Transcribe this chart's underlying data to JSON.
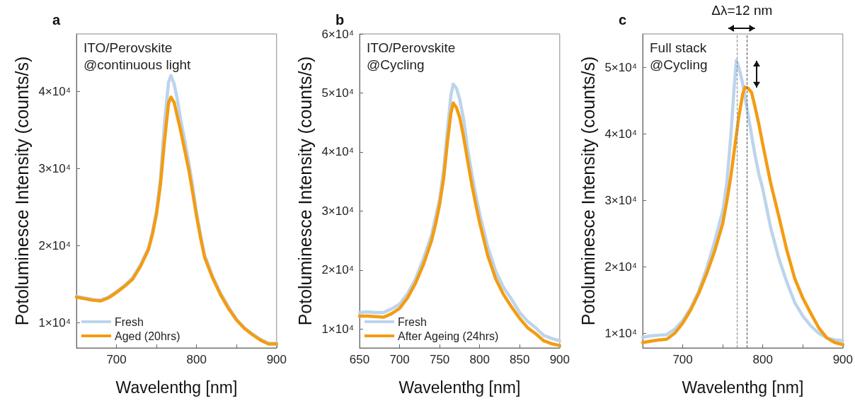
{
  "chart_data": [
    {
      "type": "line",
      "title": "a",
      "annotations": [
        "ITO/Perovskite",
        "@continuous light"
      ],
      "xlabel": "Wavelenthg [nm]",
      "ylabel": "Potoluminesce Intensity (counts/s)",
      "xlim": [
        650,
        900
      ],
      "ylim": [
        6700,
        47500
      ],
      "xticks": [
        {
          "value": 650,
          "label": null
        },
        700,
        {
          "value": 750,
          "label": null
        },
        800,
        {
          "value": 850,
          "label": null
        },
        900
      ],
      "yticks": [
        {
          "value": 10000,
          "label": "1×10⁴"
        },
        {
          "value": 20000,
          "label": "2×10⁴"
        },
        {
          "value": 30000,
          "label": "3×10⁴"
        },
        {
          "value": 40000,
          "label": "4×10⁴"
        }
      ],
      "legend": "bottom left",
      "grid": false,
      "marker": "none",
      "line_style": "solid",
      "series": [
        {
          "name": "Fresh",
          "color": "#bcd4ec",
          "x": [
            650,
            660,
            670,
            680,
            690,
            700,
            710,
            720,
            730,
            740,
            745,
            750,
            755,
            760,
            765,
            768,
            772,
            776,
            780,
            785,
            790,
            795,
            800,
            805,
            810,
            820,
            830,
            840,
            850,
            860,
            870,
            880,
            890,
            900
          ],
          "values": [
            13400,
            13200,
            13000,
            12900,
            13300,
            14000,
            14800,
            15800,
            17500,
            19700,
            21800,
            24500,
            28800,
            36000,
            41200,
            42100,
            41000,
            39000,
            36500,
            33800,
            31000,
            27800,
            24300,
            21400,
            18800,
            16000,
            13800,
            12000,
            10400,
            9300,
            8500,
            7800,
            7300,
            7300
          ]
        },
        {
          "name": "Aged (20hrs)",
          "color": "#f39c12",
          "x": [
            650,
            660,
            670,
            680,
            690,
            700,
            710,
            720,
            730,
            740,
            745,
            750,
            755,
            760,
            765,
            768,
            772,
            776,
            780,
            785,
            790,
            795,
            800,
            805,
            810,
            820,
            830,
            840,
            850,
            860,
            870,
            880,
            890,
            900
          ],
          "values": [
            13300,
            13100,
            12900,
            12800,
            13200,
            13900,
            14700,
            15600,
            17300,
            19500,
            21500,
            24100,
            28000,
            33600,
            38500,
            39300,
            38600,
            36800,
            35000,
            32500,
            30000,
            27000,
            23800,
            21000,
            18500,
            15800,
            13600,
            11800,
            10300,
            9200,
            8400,
            7700,
            7200,
            7200
          ]
        }
      ]
    },
    {
      "type": "line",
      "title": "b",
      "annotations": [
        "ITO/Perovskite",
        "@Cycling"
      ],
      "xlabel": "Wavelenthg [nm]",
      "ylabel": "Potoluminesce Intensity (counts/s)",
      "xlim": [
        650,
        900
      ],
      "ylim": [
        6800,
        60000
      ],
      "xticks": [
        650,
        700,
        750,
        800,
        850,
        900
      ],
      "yticks": [
        {
          "value": 10000,
          "label": "1×10⁴"
        },
        {
          "value": 20000,
          "label": "2×10⁴"
        },
        {
          "value": 30000,
          "label": "3×10⁴"
        },
        {
          "value": 40000,
          "label": "4×10⁴"
        },
        {
          "value": 50000,
          "label": "5×10⁴"
        },
        {
          "value": 60000,
          "label": "6×10⁴"
        }
      ],
      "legend": "bottom left",
      "grid": false,
      "marker": "none",
      "line_style": "solid",
      "series": [
        {
          "name": "Fresh",
          "color": "#bcd4ec",
          "x": [
            650,
            660,
            670,
            680,
            690,
            700,
            710,
            720,
            730,
            740,
            745,
            750,
            755,
            760,
            764,
            767,
            771,
            775,
            780,
            785,
            790,
            795,
            800,
            810,
            820,
            830,
            840,
            850,
            860,
            870,
            880,
            890,
            900
          ],
          "values": [
            12800,
            12900,
            12800,
            12800,
            13400,
            14200,
            16000,
            18500,
            22000,
            26000,
            29000,
            32000,
            37000,
            44000,
            49500,
            51500,
            50800,
            49000,
            45500,
            40500,
            36500,
            32800,
            29500,
            24000,
            19800,
            17000,
            15000,
            12800,
            11300,
            10200,
            8900,
            8400,
            8000
          ]
        },
        {
          "name": "After Ageing (24hrs)",
          "color": "#f39c12",
          "x": [
            650,
            660,
            670,
            680,
            690,
            700,
            710,
            720,
            730,
            740,
            745,
            750,
            755,
            760,
            764,
            767,
            771,
            775,
            780,
            785,
            790,
            795,
            800,
            810,
            820,
            830,
            840,
            850,
            860,
            870,
            880,
            890,
            900
          ],
          "values": [
            12200,
            12200,
            12100,
            12000,
            12600,
            13500,
            15300,
            17800,
            21000,
            25000,
            27800,
            31100,
            35500,
            42000,
            46500,
            48300,
            47500,
            45900,
            42500,
            38500,
            34600,
            31200,
            28000,
            22500,
            18500,
            15800,
            13700,
            11800,
            10200,
            9200,
            8000,
            7500,
            7200
          ]
        }
      ]
    },
    {
      "type": "line",
      "title": "c",
      "annotations": [
        "Full stack",
        "@Cycling",
        "Δλ=12 nm"
      ],
      "xlabel": "Wavelenthg [nm]",
      "ylabel": "Potoluminesce Intensity (counts/s)",
      "xlim": [
        650,
        900
      ],
      "ylim": [
        7800,
        55000
      ],
      "xticks": [
        {
          "value": 650,
          "label": null
        },
        700,
        {
          "value": 750,
          "label": null
        },
        800,
        {
          "value": 850,
          "label": null
        },
        900
      ],
      "yticks": [
        {
          "value": 10000,
          "label": "1×10⁴"
        },
        {
          "value": 20000,
          "label": "2×10⁴"
        },
        {
          "value": 30000,
          "label": "3×10⁴"
        },
        {
          "value": 40000,
          "label": "4×10⁴"
        },
        {
          "value": 50000,
          "label": "5×10⁴"
        }
      ],
      "legend": false,
      "grid": false,
      "marker": "none",
      "line_style": "solid",
      "ref_lines": [
        {
          "axis": "x",
          "value": 768,
          "line_style": "dashed",
          "color": "#888888"
        },
        {
          "axis": "x",
          "value": 780,
          "line_style": "dashed",
          "color": "#555555"
        }
      ],
      "series": [
        {
          "color": "#bcd4ec",
          "x": [
            650,
            660,
            670,
            680,
            690,
            700,
            710,
            720,
            730,
            740,
            750,
            755,
            760,
            764,
            767,
            770,
            775,
            780,
            785,
            790,
            795,
            800,
            810,
            820,
            830,
            840,
            850,
            860,
            870,
            880,
            890,
            900
          ],
          "values": [
            9400,
            9600,
            9700,
            9800,
            10600,
            11900,
            13800,
            16300,
            19800,
            23800,
            28400,
            32500,
            39500,
            46500,
            51000,
            50000,
            47500,
            44000,
            40500,
            37000,
            34000,
            31700,
            25800,
            21300,
            17700,
            14600,
            12600,
            11100,
            10000,
            9300,
            9000,
            8900
          ]
        },
        {
          "color": "#f39c12",
          "x": [
            650,
            660,
            670,
            680,
            690,
            700,
            710,
            720,
            730,
            740,
            750,
            755,
            760,
            765,
            770,
            775,
            778,
            782,
            786,
            790,
            795,
            800,
            810,
            820,
            830,
            840,
            850,
            860,
            870,
            880,
            890,
            900
          ],
          "values": [
            8600,
            8800,
            9000,
            9100,
            10000,
            11500,
            13500,
            16000,
            19000,
            22400,
            26500,
            29800,
            33500,
            38000,
            42500,
            46000,
            47000,
            46800,
            46200,
            44200,
            41500,
            38400,
            32500,
            27600,
            22500,
            18200,
            15300,
            13000,
            10800,
            9300,
            8600,
            8300
          ]
        }
      ]
    }
  ]
}
